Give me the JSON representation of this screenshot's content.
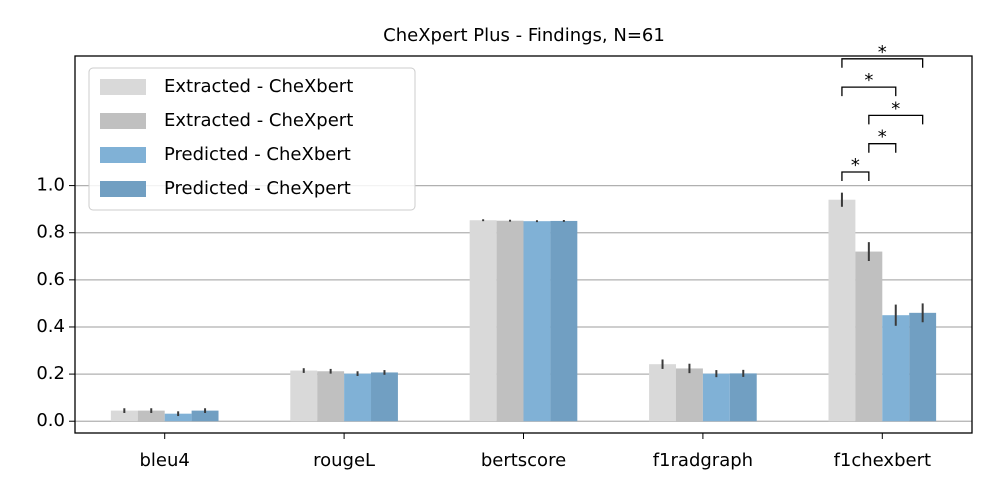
{
  "chart_data": {
    "type": "bar",
    "title": "CheXpert Plus - Findings, N=61",
    "categories": [
      "bleu4",
      "rougeL",
      "bertscore",
      "f1radgraph",
      "f1chexbert"
    ],
    "series": [
      {
        "name": "Extracted - CheXbert",
        "color": "#d9d9d9",
        "values": [
          0.045,
          0.215,
          0.853,
          0.242,
          0.94
        ],
        "errors": [
          0.01,
          0.01,
          0.004,
          0.02,
          0.03
        ]
      },
      {
        "name": "Extracted - CheXpert",
        "color": "#c0c0c0",
        "values": [
          0.045,
          0.212,
          0.851,
          0.224,
          0.72
        ],
        "errors": [
          0.01,
          0.01,
          0.004,
          0.02,
          0.04
        ]
      },
      {
        "name": "Predicted - CheXbert",
        "color": "#80b1d6",
        "values": [
          0.032,
          0.202,
          0.849,
          0.202,
          0.45
        ],
        "errors": [
          0.01,
          0.01,
          0.004,
          0.015,
          0.045
        ]
      },
      {
        "name": "Predicted - CheXpert",
        "color": "#719fc2",
        "values": [
          0.045,
          0.207,
          0.85,
          0.203,
          0.46
        ],
        "errors": [
          0.01,
          0.01,
          0.004,
          0.015,
          0.04
        ]
      }
    ],
    "significance": [
      {
        "category": 4,
        "pair": [
          0,
          1
        ],
        "label": "*"
      },
      {
        "category": 4,
        "pair": [
          1,
          2
        ],
        "label": "*"
      },
      {
        "category": 4,
        "pair": [
          1,
          3
        ],
        "label": "*"
      },
      {
        "category": 4,
        "pair": [
          0,
          2
        ],
        "label": "*"
      },
      {
        "category": 4,
        "pair": [
          0,
          3
        ],
        "label": "*"
      }
    ],
    "ylim": [
      -0.05,
      1.55
    ],
    "yticks": [
      {
        "value": 0,
        "label": "0.0"
      },
      {
        "value": 0.2,
        "label": "0.2"
      },
      {
        "value": 0.4,
        "label": "0.4"
      },
      {
        "value": 0.6,
        "label": "0.6"
      },
      {
        "value": 0.8,
        "label": "0.8"
      },
      {
        "value": 1,
        "label": "1.0"
      }
    ],
    "grid": true,
    "legend": "upper left"
  }
}
